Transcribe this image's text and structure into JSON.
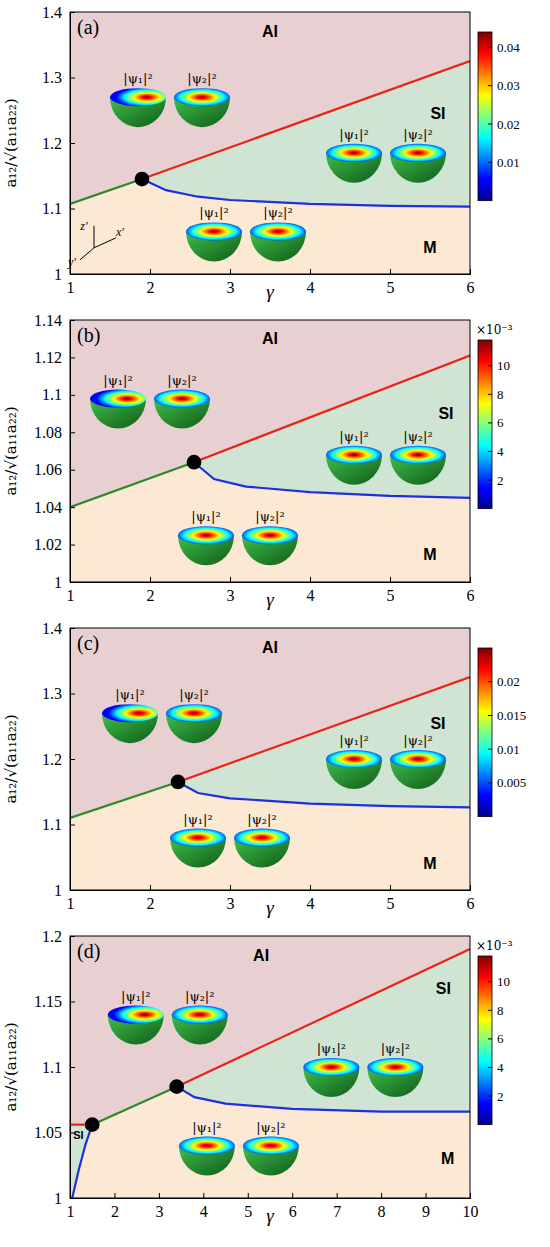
{
  "chart_data": [
    {
      "type": "line",
      "label": "(a)",
      "xlabel": "γ",
      "ylabel": "a₁₂/√(a₁₁a₂₂)",
      "xlim": [
        1,
        6
      ],
      "ylim": [
        1,
        1.4
      ],
      "xticks": [
        1,
        2,
        3,
        4,
        5,
        6
      ],
      "yticks": [
        1,
        1.1,
        1.2,
        1.3,
        1.4
      ],
      "regions": [
        {
          "color": "#fbe9d4",
          "x": [
            1,
            1.9,
            2.2,
            2.6,
            3,
            4,
            5,
            6,
            6,
            1
          ],
          "values": [
            1.107,
            1.145,
            1.128,
            1.118,
            1.113,
            1.107,
            1.104,
            1.103,
            1,
            1
          ]
        },
        {
          "color": "#cfe4d3",
          "x": [
            1.9,
            6,
            6,
            5,
            4,
            3,
            2.6,
            2.2
          ],
          "values": [
            1.145,
            1.325,
            1.103,
            1.104,
            1.107,
            1.113,
            1.118,
            1.128
          ]
        },
        {
          "color": "#e8d0d2",
          "x": [
            1,
            1.9,
            6,
            6,
            1
          ],
          "values": [
            1.107,
            1.145,
            1.325,
            1.4,
            1.4
          ]
        }
      ],
      "series": [
        {
          "color": "#e8231c",
          "line_style": "solid",
          "x": [
            1.9,
            6
          ],
          "values": [
            1.145,
            1.325
          ]
        },
        {
          "color": "#2a8a2a",
          "line_style": "solid",
          "x": [
            1,
            1.9
          ],
          "values": [
            1.107,
            1.145
          ]
        },
        {
          "color": "#1f2fdc",
          "line_style": "solid",
          "x": [
            1.9,
            2.2,
            2.6,
            3,
            4,
            5,
            6
          ],
          "values": [
            1.145,
            1.128,
            1.118,
            1.113,
            1.107,
            1.104,
            1.103
          ]
        },
        {
          "type": "scatter",
          "marker": "circle",
          "color": "#000000",
          "x": [
            1.9
          ],
          "values": [
            1.145
          ]
        }
      ],
      "annotations": [
        {
          "text": "AI",
          "x": 3.5,
          "y": 1.37
        },
        {
          "text": "SI",
          "x": 5.6,
          "y": 1.245
        },
        {
          "text": "M",
          "x": 5.5,
          "y": 1.04
        }
      ],
      "insets": [
        {
          "labels": [
            "|ψ₁|²",
            "|ψ₂|²"
          ],
          "x": 2.25,
          "y": 1.27
        },
        {
          "labels": [
            "|ψ₁|²",
            "|ψ₂|²"
          ],
          "x": 4.95,
          "y": 1.185
        },
        {
          "labels": [
            "|ψ₁|²",
            "|ψ₂|²"
          ],
          "x": 3.2,
          "y": 1.065
        }
      ],
      "triad": {
        "labels": [
          "z′",
          "x′",
          "y′"
        ],
        "x": 1.3,
        "y": 1.04
      },
      "colorbar": {
        "range": [
          0,
          0.044
        ],
        "ticks": [
          0.01,
          0.02,
          0.03,
          0.04
        ]
      }
    },
    {
      "type": "line",
      "label": "(b)",
      "xlabel": "γ",
      "ylabel": "a₁₂/√(a₁₁a₂₂)",
      "xlim": [
        1,
        6
      ],
      "ylim": [
        1,
        1.14
      ],
      "xticks": [
        1,
        2,
        3,
        4,
        5,
        6
      ],
      "yticks": [
        1,
        1.02,
        1.04,
        1.06,
        1.08,
        1.1,
        1.12,
        1.14
      ],
      "regions": [
        {
          "color": "#fbe9d4",
          "x": [
            1,
            2.55,
            2.8,
            3.2,
            4,
            5,
            6,
            6,
            1
          ],
          "values": [
            1.04,
            1.064,
            1.055,
            1.051,
            1.048,
            1.046,
            1.045,
            1,
            1
          ]
        },
        {
          "color": "#cfe4d3",
          "x": [
            2.55,
            6,
            6,
            5,
            4,
            3.2,
            2.8
          ],
          "values": [
            1.064,
            1.121,
            1.045,
            1.046,
            1.048,
            1.051,
            1.055
          ]
        },
        {
          "color": "#e8d0d2",
          "x": [
            1,
            2.55,
            6,
            6,
            1
          ],
          "values": [
            1.04,
            1.064,
            1.121,
            1.14,
            1.14
          ]
        }
      ],
      "series": [
        {
          "color": "#e8231c",
          "line_style": "solid",
          "x": [
            2.55,
            6
          ],
          "values": [
            1.064,
            1.121
          ]
        },
        {
          "color": "#2a8a2a",
          "line_style": "solid",
          "x": [
            1,
            2.55
          ],
          "values": [
            1.04,
            1.064
          ]
        },
        {
          "color": "#1f2fdc",
          "line_style": "solid",
          "x": [
            2.55,
            2.8,
            3.2,
            4,
            5,
            6
          ],
          "values": [
            1.064,
            1.055,
            1.051,
            1.048,
            1.046,
            1.045
          ]
        },
        {
          "type": "scatter",
          "marker": "circle",
          "color": "#000000",
          "x": [
            2.55
          ],
          "values": [
            1.064
          ]
        }
      ],
      "annotations": [
        {
          "text": "AI",
          "x": 3.5,
          "y": 1.13
        },
        {
          "text": "SI",
          "x": 5.7,
          "y": 1.09
        },
        {
          "text": "M",
          "x": 5.5,
          "y": 1.015
        }
      ],
      "insets": [
        {
          "labels": [
            "|ψ₁|²",
            "|ψ₂|²"
          ],
          "x": 2.0,
          "y": 1.098
        },
        {
          "labels": [
            "|ψ₁|²",
            "|ψ₂|²"
          ],
          "x": 4.95,
          "y": 1.068
        },
        {
          "labels": [
            "|ψ₁|²",
            "|ψ₂|²"
          ],
          "x": 3.1,
          "y": 1.025
        }
      ],
      "colorbar": {
        "label": "×10⁻³",
        "range": [
          0,
          11.8
        ],
        "ticks": [
          2,
          4,
          6,
          8,
          10
        ]
      }
    },
    {
      "type": "line",
      "label": "(c)",
      "xlabel": "γ",
      "ylabel": "a₁₂/√(a₁₁a₂₂)",
      "xlim": [
        1,
        6
      ],
      "ylim": [
        1,
        1.4
      ],
      "xticks": [
        1,
        2,
        3,
        4,
        5,
        6
      ],
      "yticks": [
        1,
        1.1,
        1.2,
        1.3,
        1.4
      ],
      "regions": [
        {
          "color": "#fbe9d4",
          "x": [
            1,
            2.35,
            2.6,
            3,
            4,
            5,
            6,
            6,
            1
          ],
          "values": [
            1.11,
            1.165,
            1.148,
            1.14,
            1.132,
            1.128,
            1.126,
            1,
            1
          ]
        },
        {
          "color": "#cfe4d3",
          "x": [
            2.35,
            6,
            6,
            5,
            4,
            3,
            2.6
          ],
          "values": [
            1.165,
            1.325,
            1.126,
            1.128,
            1.132,
            1.14,
            1.148
          ]
        },
        {
          "color": "#e8d0d2",
          "x": [
            1,
            2.35,
            6,
            6,
            1
          ],
          "values": [
            1.11,
            1.165,
            1.325,
            1.4,
            1.4
          ]
        }
      ],
      "series": [
        {
          "color": "#e8231c",
          "line_style": "solid",
          "x": [
            2.35,
            6
          ],
          "values": [
            1.165,
            1.325
          ]
        },
        {
          "color": "#2a8a2a",
          "line_style": "solid",
          "x": [
            1,
            2.35
          ],
          "values": [
            1.11,
            1.165
          ]
        },
        {
          "color": "#1f2fdc",
          "line_style": "solid",
          "x": [
            2.35,
            2.6,
            3,
            4,
            5,
            6
          ],
          "values": [
            1.165,
            1.148,
            1.14,
            1.132,
            1.128,
            1.126
          ]
        },
        {
          "type": "scatter",
          "marker": "circle",
          "color": "#000000",
          "x": [
            2.35
          ],
          "values": [
            1.165
          ]
        }
      ],
      "annotations": [
        {
          "text": "AI",
          "x": 3.5,
          "y": 1.37
        },
        {
          "text": "SI",
          "x": 5.6,
          "y": 1.255
        },
        {
          "text": "M",
          "x": 5.5,
          "y": 1.04
        }
      ],
      "insets": [
        {
          "labels": [
            "|ψ₁|²",
            "|ψ₂|²"
          ],
          "x": 2.15,
          "y": 1.27
        },
        {
          "labels": [
            "|ψ₁|²",
            "|ψ₂|²"
          ],
          "x": 4.95,
          "y": 1.2
        },
        {
          "labels": [
            "|ψ₁|²",
            "|ψ₂|²"
          ],
          "x": 3.0,
          "y": 1.08
        }
      ],
      "colorbar": {
        "range": [
          0,
          0.025
        ],
        "ticks": [
          0.005,
          0.01,
          0.015,
          0.02
        ]
      }
    },
    {
      "type": "line",
      "label": "(d)",
      "xlabel": "γ",
      "ylabel": "a₁₂/√(a₁₁a₂₂)",
      "xlim": [
        1,
        10
      ],
      "ylim": [
        1,
        1.2
      ],
      "xticks": [
        1,
        2,
        3,
        4,
        5,
        6,
        7,
        8,
        9,
        10
      ],
      "yticks": [
        1,
        1.05,
        1.1,
        1.15,
        1.2
      ],
      "regions": [
        {
          "color": "#fbe9d4",
          "x": [
            1.05,
            1.2,
            1.35,
            1.5,
            3.4,
            3.8,
            4.5,
            6,
            8,
            10,
            10
          ],
          "values": [
            1,
            1.022,
            1.041,
            1.056,
            1.085,
            1.077,
            1.072,
            1.068,
            1.066,
            1.066,
            1
          ]
        },
        {
          "color": "#cfe4d3",
          "x": [
            3.4,
            10,
            10,
            8,
            6,
            4.5,
            3.8
          ],
          "values": [
            1.085,
            1.19,
            1.066,
            1.066,
            1.068,
            1.072,
            1.077
          ]
        },
        {
          "color": "#cfe4d3",
          "x": [
            1,
            1.5,
            1.35,
            1.2,
            1.05,
            1
          ],
          "values": [
            1.056,
            1.056,
            1.041,
            1.022,
            1,
            1
          ]
        },
        {
          "color": "#e8d0d2",
          "x": [
            1,
            1.5,
            3.4,
            10,
            10,
            1
          ],
          "values": [
            1.056,
            1.056,
            1.085,
            1.19,
            1.2,
            1.2
          ]
        }
      ],
      "series": [
        {
          "color": "#e8231c",
          "line_style": "solid",
          "x": [
            1,
            1.5
          ],
          "values": [
            1.056,
            1.056
          ]
        },
        {
          "color": "#2a8a2a",
          "line_style": "solid",
          "x": [
            1.5,
            3.4
          ],
          "values": [
            1.056,
            1.085
          ]
        },
        {
          "color": "#e8231c",
          "line_style": "solid",
          "x": [
            3.4,
            10
          ],
          "values": [
            1.085,
            1.19
          ]
        },
        {
          "color": "#1f2fdc",
          "line_style": "solid",
          "x": [
            1.05,
            1.2,
            1.35,
            1.5
          ],
          "values": [
            1,
            1.022,
            1.041,
            1.056
          ]
        },
        {
          "color": "#1f2fdc",
          "line_style": "solid",
          "x": [
            3.4,
            3.8,
            4.5,
            6,
            8,
            10
          ],
          "values": [
            1.085,
            1.077,
            1.072,
            1.068,
            1.066,
            1.066
          ]
        },
        {
          "type": "scatter",
          "marker": "circle",
          "color": "#000000",
          "x": [
            1.5,
            3.4
          ],
          "values": [
            1.056,
            1.085
          ]
        }
      ],
      "annotations": [
        {
          "text": "AI",
          "x": 5.3,
          "y": 1.185
        },
        {
          "text": "SI",
          "x": 9.4,
          "y": 1.16
        },
        {
          "text": "M",
          "x": 9.5,
          "y": 1.03
        },
        {
          "text": "SI",
          "x": 1.19,
          "y": 1.048
        }
      ],
      "insets": [
        {
          "labels": [
            "|ψ₁|²",
            "|ψ₂|²"
          ],
          "x": 3.2,
          "y": 1.14
        },
        {
          "labels": [
            "|ψ₁|²",
            "|ψ₂|²"
          ],
          "x": 7.6,
          "y": 1.1
        },
        {
          "labels": [
            "|ψ₁|²",
            "|ψ₂|²"
          ],
          "x": 4.8,
          "y": 1.04
        }
      ],
      "colorbar": {
        "label": "×10⁻³",
        "range": [
          0,
          11.8
        ],
        "ticks": [
          2,
          4,
          6,
          8,
          10
        ]
      }
    }
  ]
}
